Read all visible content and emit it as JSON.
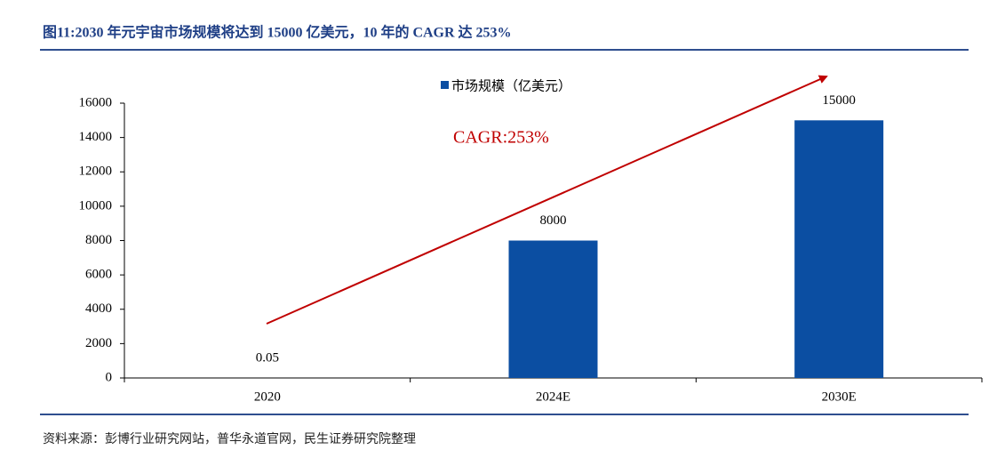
{
  "chart_data": {
    "type": "bar",
    "title": "图11:2030 年元宇宙市场规模将达到 15000 亿美元，10 年的 CAGR 达 253%",
    "source": "资料来源：彭博行业研究网站，普华永道官网，民生证券研究院整理",
    "annotation": "CAGR:253%",
    "categories": [
      "2020",
      "2024E",
      "2030E"
    ],
    "series": [
      {
        "name": "市场规模（亿美元）",
        "color": "#0b4ea2",
        "values": [
          0.05,
          8000,
          15000
        ]
      }
    ],
    "ylim": [
      0,
      16000
    ],
    "yticks": [
      0,
      2000,
      4000,
      6000,
      8000,
      10000,
      12000,
      14000,
      16000
    ]
  }
}
